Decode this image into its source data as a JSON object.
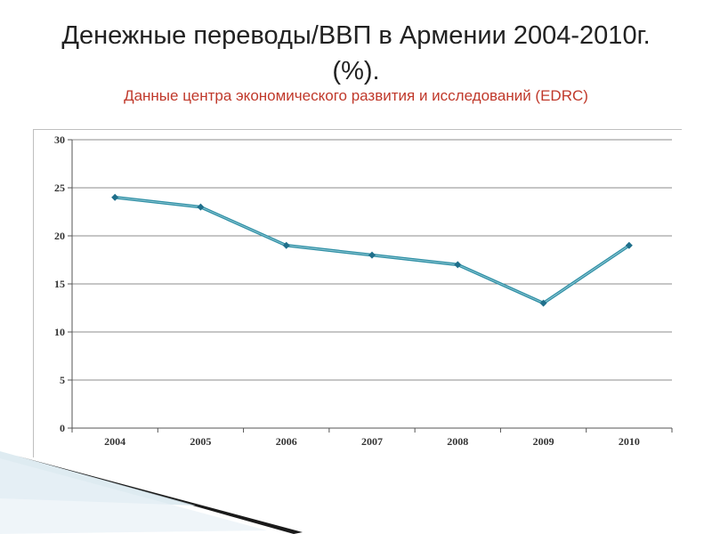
{
  "slide": {
    "title": "Денежные переводы/ВВП в Армении 2004-2010г. (%).",
    "subtitle": "Данные центра экономического развития и исследований (EDRC)"
  },
  "colors": {
    "subtitle": "#c0392b",
    "line": "#2e8fa5",
    "marker": "#1f6f8b",
    "grid": "#8c8c8c"
  },
  "chart_data": {
    "type": "line",
    "title": "",
    "xlabel": "",
    "ylabel": "",
    "categories": [
      "2004",
      "2005",
      "2006",
      "2007",
      "2008",
      "2009",
      "2010"
    ],
    "series": [
      {
        "values": [
          24,
          23,
          19,
          18,
          17,
          13,
          19
        ]
      }
    ],
    "ylim": [
      0,
      30
    ],
    "yticks": [
      "0",
      "5",
      "10",
      "15",
      "20",
      "25",
      "30"
    ],
    "grid": true,
    "legend": "none"
  }
}
